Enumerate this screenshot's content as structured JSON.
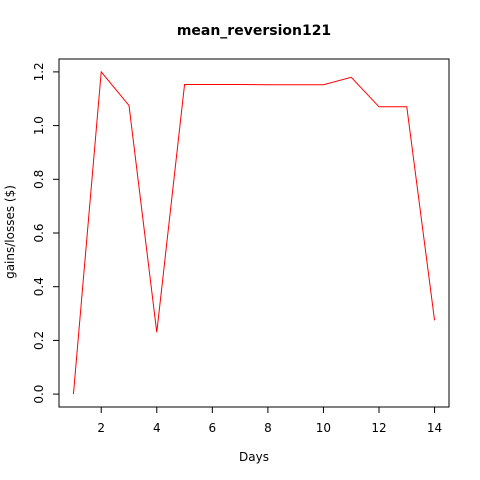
{
  "chart_data": {
    "type": "line",
    "title": "mean_reversion121",
    "xlabel": "Days",
    "ylabel": "gains/losses ($)",
    "x": [
      1,
      2,
      3,
      4,
      5,
      6,
      7,
      8,
      9,
      10,
      11,
      12,
      13,
      14
    ],
    "series": [
      {
        "color": "#ff0000",
        "values": [
          0.0,
          1.2,
          1.075,
          0.23,
          1.153,
          1.153,
          1.153,
          1.152,
          1.152,
          1.152,
          1.18,
          1.07,
          1.07,
          0.275
        ]
      }
    ],
    "xlim": [
      0.48,
      14.52
    ],
    "ylim": [
      -0.048,
      1.248
    ],
    "xticks": [
      2,
      4,
      6,
      8,
      10,
      12,
      14
    ],
    "yticks": [
      0.0,
      0.2,
      0.4,
      0.6,
      0.8,
      1.0,
      1.2
    ],
    "xtick_labels": [
      "2",
      "4",
      "6",
      "8",
      "10",
      "12",
      "14"
    ],
    "ytick_labels": [
      "0.0",
      "0.2",
      "0.4",
      "0.6",
      "0.8",
      "1.0",
      "1.2"
    ],
    "grid": false,
    "legend": "none"
  }
}
